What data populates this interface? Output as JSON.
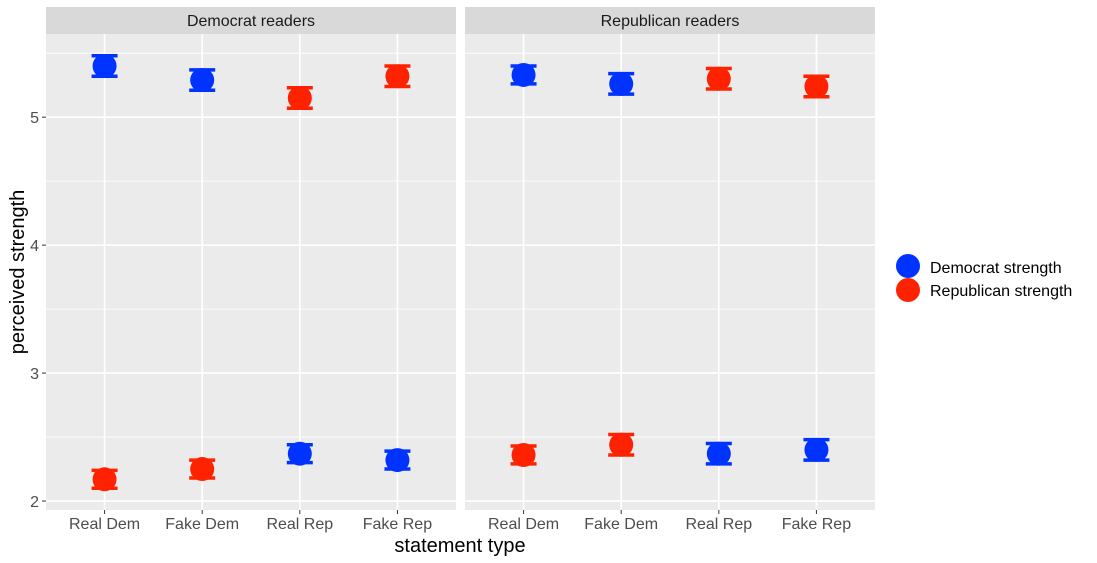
{
  "chart_data": {
    "type": "scatter",
    "xlabel": "statement type",
    "ylabel": "perceived strength",
    "categories": [
      "Real Dem",
      "Fake Dem",
      "Real Rep",
      "Fake Rep"
    ],
    "ylim": [
      1.93,
      5.65
    ],
    "yticks": [
      "2",
      "3",
      "4",
      "5"
    ],
    "grid": true,
    "legend_position": "right",
    "panels": [
      {
        "title": "Democrat readers",
        "series": [
          {
            "name": "Democrat strength",
            "color": "#0033ff",
            "icon": "circle",
            "values": [
              5.4,
              5.29,
              2.37,
              2.32
            ],
            "lower": [
              5.32,
              5.21,
              2.3,
              2.25
            ],
            "upper": [
              5.48,
              5.37,
              2.44,
              2.39
            ]
          },
          {
            "name": "Republican strength",
            "color": "#ff2200",
            "icon": "circle",
            "values": [
              2.17,
              2.25,
              5.15,
              5.32
            ],
            "lower": [
              2.1,
              2.18,
              5.07,
              5.24
            ],
            "upper": [
              2.24,
              2.32,
              5.23,
              5.4
            ]
          }
        ]
      },
      {
        "title": "Republican readers",
        "series": [
          {
            "name": "Democrat strength",
            "color": "#0033ff",
            "icon": "circle",
            "values": [
              5.33,
              5.26,
              2.37,
              2.4
            ],
            "lower": [
              5.26,
              5.18,
              2.29,
              2.32
            ],
            "upper": [
              5.4,
              5.34,
              2.45,
              2.48
            ]
          },
          {
            "name": "Republican strength",
            "color": "#ff2200",
            "icon": "circle",
            "values": [
              2.36,
              2.44,
              5.3,
              5.24
            ],
            "lower": [
              2.29,
              2.36,
              5.22,
              5.16
            ],
            "upper": [
              2.43,
              2.52,
              5.38,
              5.32
            ]
          }
        ]
      }
    ],
    "legend": [
      {
        "label": "Democrat strength",
        "color": "#0033ff",
        "icon": "circle"
      },
      {
        "label": "Republican strength",
        "color": "#ff2200",
        "icon": "circle"
      }
    ]
  }
}
